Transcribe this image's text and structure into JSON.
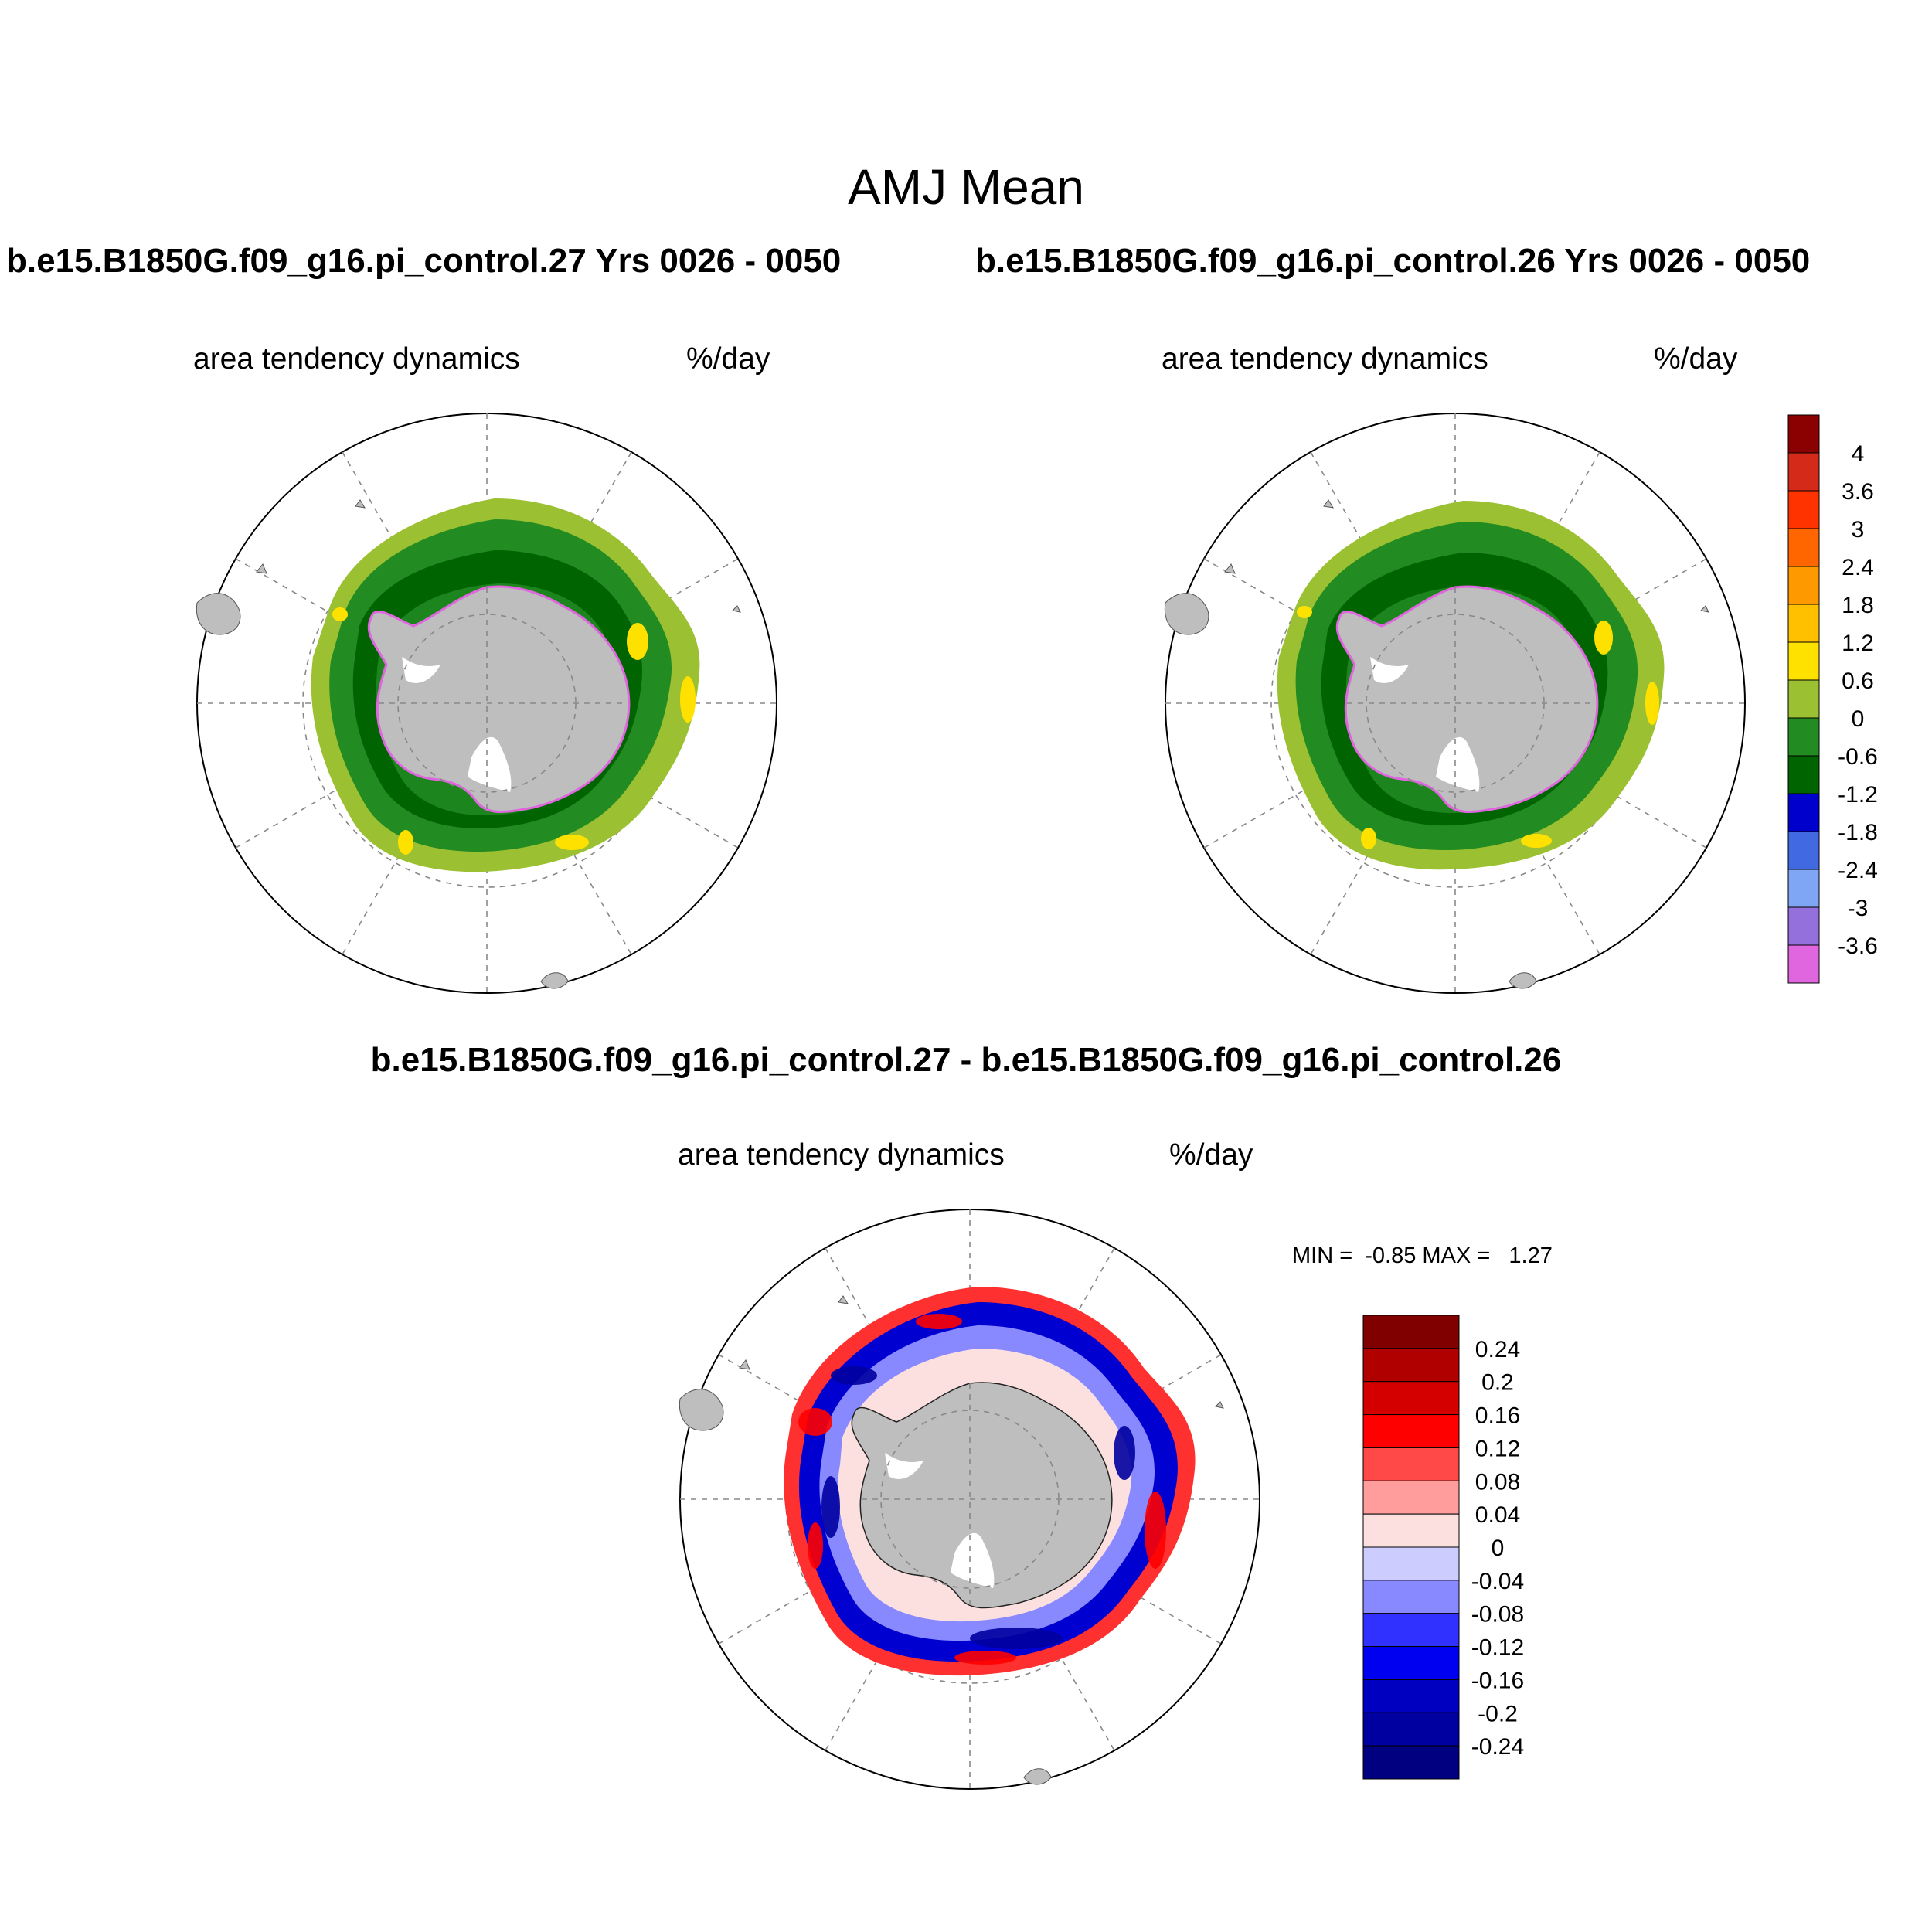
{
  "figure": {
    "title": "AMJ Mean",
    "panels": [
      {
        "case_title": "b.e15.B1850G.f09_g16.pi_control.27  Yrs 0026 - 0050",
        "variable": "area tendency dynamics",
        "units": "%/day"
      },
      {
        "case_title": "b.e15.B1850G.f09_g16.pi_control.26  Yrs 0026 - 0050",
        "variable": "area tendency dynamics",
        "units": "%/day"
      }
    ],
    "diff_panel": {
      "title": "b.e15.B1850G.f09_g16.pi_control.27 - b.e15.B1850G.f09_g16.pi_control.26",
      "variable": "area tendency dynamics",
      "units": "%/day",
      "minmax": "MIN =  -0.85 MAX =   1.27"
    }
  },
  "colorbar_top": {
    "labels": [
      "4",
      "3.6",
      "3",
      "2.4",
      "1.8",
      "1.2",
      "0.6",
      "0",
      "-0.6",
      "-1.2",
      "-1.8",
      "-2.4",
      "-3",
      "-3.6"
    ],
    "colors": [
      "#8B0000",
      "#D42A1A",
      "#FF3300",
      "#FF6600",
      "#FF9900",
      "#FFC000",
      "#FFE100",
      "#9BC031",
      "#228B22",
      "#006400",
      "#0000CD",
      "#4169E1",
      "#7EA6F4",
      "#9370DB",
      "#E066E0"
    ]
  },
  "colorbar_diff": {
    "labels": [
      "0.24",
      "0.2",
      "0.16",
      "0.12",
      "0.08",
      "0.04",
      "0",
      "-0.04",
      "-0.08",
      "-0.12",
      "-0.16",
      "-0.2",
      "-0.24"
    ],
    "colors": [
      "#800000",
      "#B00000",
      "#D40000",
      "#FF0000",
      "#FF4848",
      "#FF9C9C",
      "#FCE0E0",
      "#CCCCFF",
      "#8888FF",
      "#3030FF",
      "#0000F0",
      "#0000C0",
      "#0000A0",
      "#000080"
    ]
  }
}
